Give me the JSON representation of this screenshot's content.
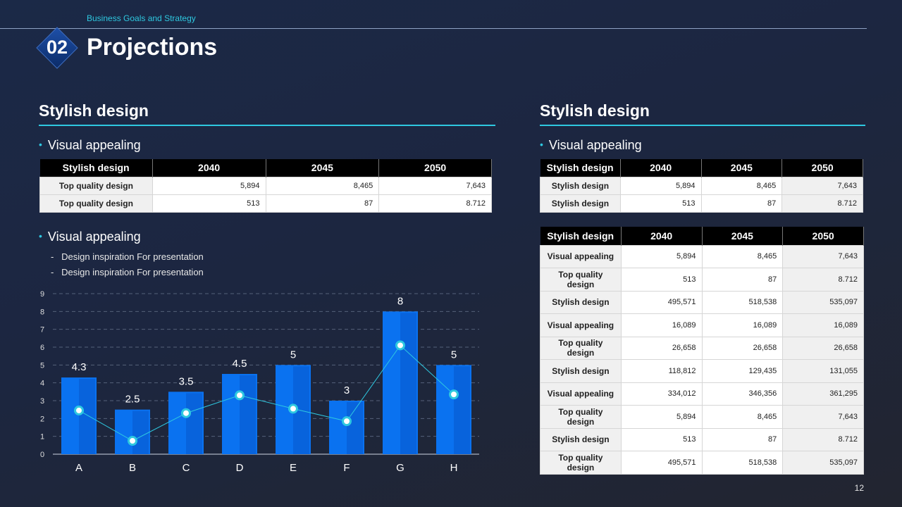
{
  "header": {
    "subtitle": "Business Goals and Strategy",
    "section_number": "02",
    "title": "Projections"
  },
  "page_number": "12",
  "left": {
    "section_title": "Stylish design",
    "bullet1": "Visual appealing",
    "table": {
      "headers": [
        "Stylish design",
        "2040",
        "2045",
        "2050"
      ],
      "rows": [
        [
          "Top quality design",
          "5,894",
          "8,465",
          "7,643"
        ],
        [
          "Top quality design",
          "513",
          "87",
          "8.712"
        ]
      ]
    },
    "bullet2": "Visual appealing",
    "sub_bullets": [
      "Design inspiration For presentation",
      "Design inspiration For presentation"
    ]
  },
  "right": {
    "section_title": "Stylish design",
    "bullet1": "Visual appealing",
    "table1": {
      "headers": [
        "Stylish design",
        "2040",
        "2045",
        "2050"
      ],
      "rows": [
        [
          "Stylish design",
          "5,894",
          "8,465",
          "7,643"
        ],
        [
          "Stylish design",
          "513",
          "87",
          "8.712"
        ]
      ]
    },
    "table2": {
      "headers": [
        "Stylish design",
        "2040",
        "2045",
        "2050"
      ],
      "rows": [
        [
          "Visual appealing",
          "5,894",
          "8,465",
          "7,643"
        ],
        [
          "Top quality design",
          "513",
          "87",
          "8.712"
        ],
        [
          "Stylish design",
          "495,571",
          "518,538",
          "535,097"
        ],
        [
          "Visual appealing",
          "16,089",
          "16,089",
          "16,089"
        ],
        [
          "Top quality design",
          "26,658",
          "26,658",
          "26,658"
        ],
        [
          "Stylish design",
          "118,812",
          "129,435",
          "131,055"
        ],
        [
          "Visual appealing",
          "334,012",
          "346,356",
          "361,295"
        ],
        [
          "Top quality design",
          "5,894",
          "8,465",
          "7,643"
        ],
        [
          "Stylish design",
          "513",
          "87",
          "8.712"
        ],
        [
          "Top quality design",
          "495,571",
          "518,538",
          "535,097"
        ]
      ]
    }
  },
  "colors": {
    "accent": "#2ec8e0",
    "bar": "#0a72f0",
    "bar_dark": "#0654c7",
    "line": "#2ec8e0"
  },
  "chart_data": {
    "type": "bar",
    "categories": [
      "A",
      "B",
      "C",
      "D",
      "E",
      "F",
      "G",
      "H"
    ],
    "series": [
      {
        "values": [
          4.3,
          2.5,
          3.5,
          4.5,
          5,
          3,
          8,
          5
        ]
      },
      {
        "type": "line",
        "values": [
          2.45,
          0.75,
          2.3,
          3.3,
          2.55,
          1.85,
          6.1,
          3.35
        ]
      }
    ],
    "data_labels": [
      "4.3",
      "2.5",
      "3.5",
      "4.5",
      "5",
      "3",
      "8",
      "5"
    ],
    "yticks": [
      "0",
      "1",
      "2",
      "3",
      "4",
      "5",
      "6",
      "7",
      "8",
      "9"
    ],
    "ylim": [
      0,
      9
    ],
    "grid": true
  }
}
